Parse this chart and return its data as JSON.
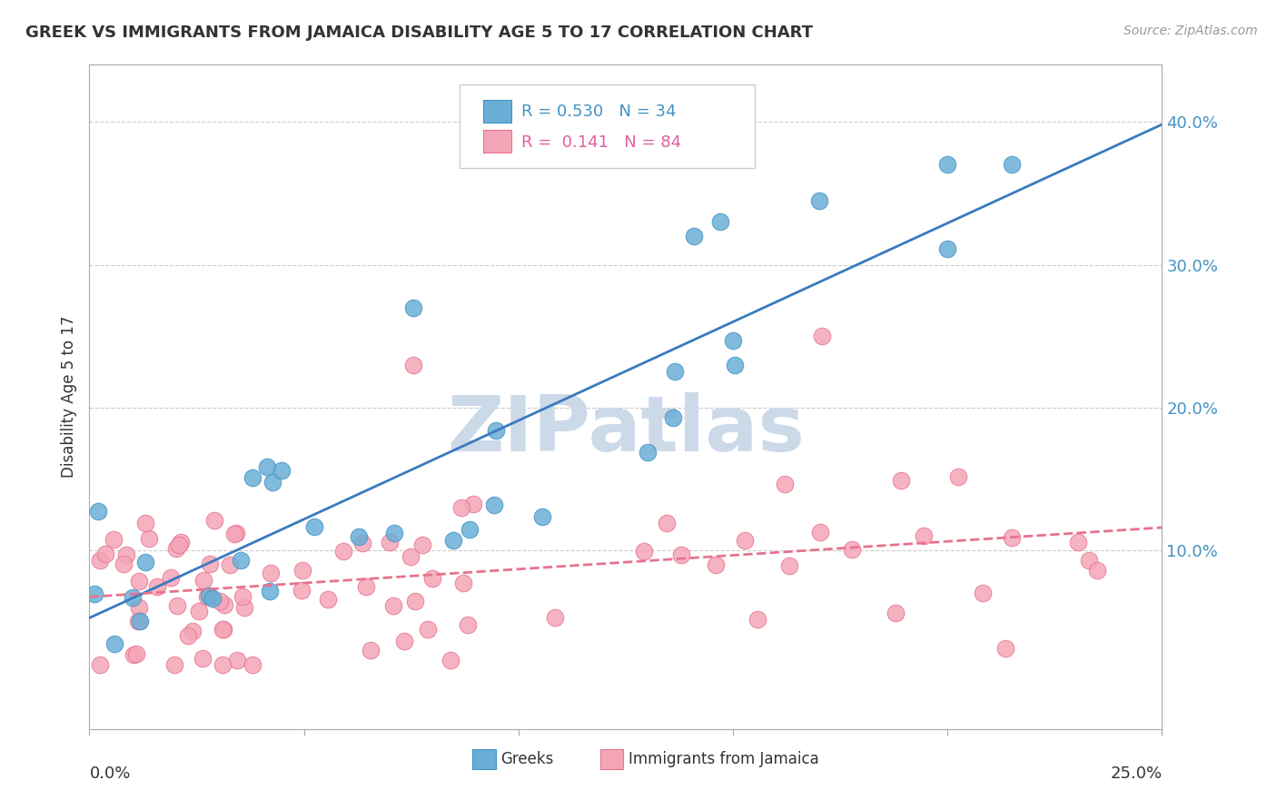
{
  "title": "GREEK VS IMMIGRANTS FROM JAMAICA DISABILITY AGE 5 TO 17 CORRELATION CHART",
  "source": "Source: ZipAtlas.com",
  "ylabel": "Disability Age 5 to 17",
  "ytick_positions": [
    0.0,
    0.1,
    0.2,
    0.3,
    0.4
  ],
  "xlim": [
    0.0,
    0.25
  ],
  "ylim": [
    -0.025,
    0.44
  ],
  "legend_blue_R": "R = 0.530",
  "legend_blue_N": "N = 34",
  "legend_pink_R": "R =  0.141",
  "legend_pink_N": "N = 84",
  "legend_label_blue": "Greeks",
  "legend_label_pink": "Immigrants from Jamaica",
  "blue_color": "#6aaed6",
  "pink_color": "#f4a6b8",
  "blue_edge_color": "#4393c3",
  "pink_edge_color": "#e8728e",
  "blue_line_color": "#3a7abf",
  "pink_line_color": "#e8728e",
  "watermark": "ZIPatlas",
  "watermark_color": "#ccd9e8"
}
